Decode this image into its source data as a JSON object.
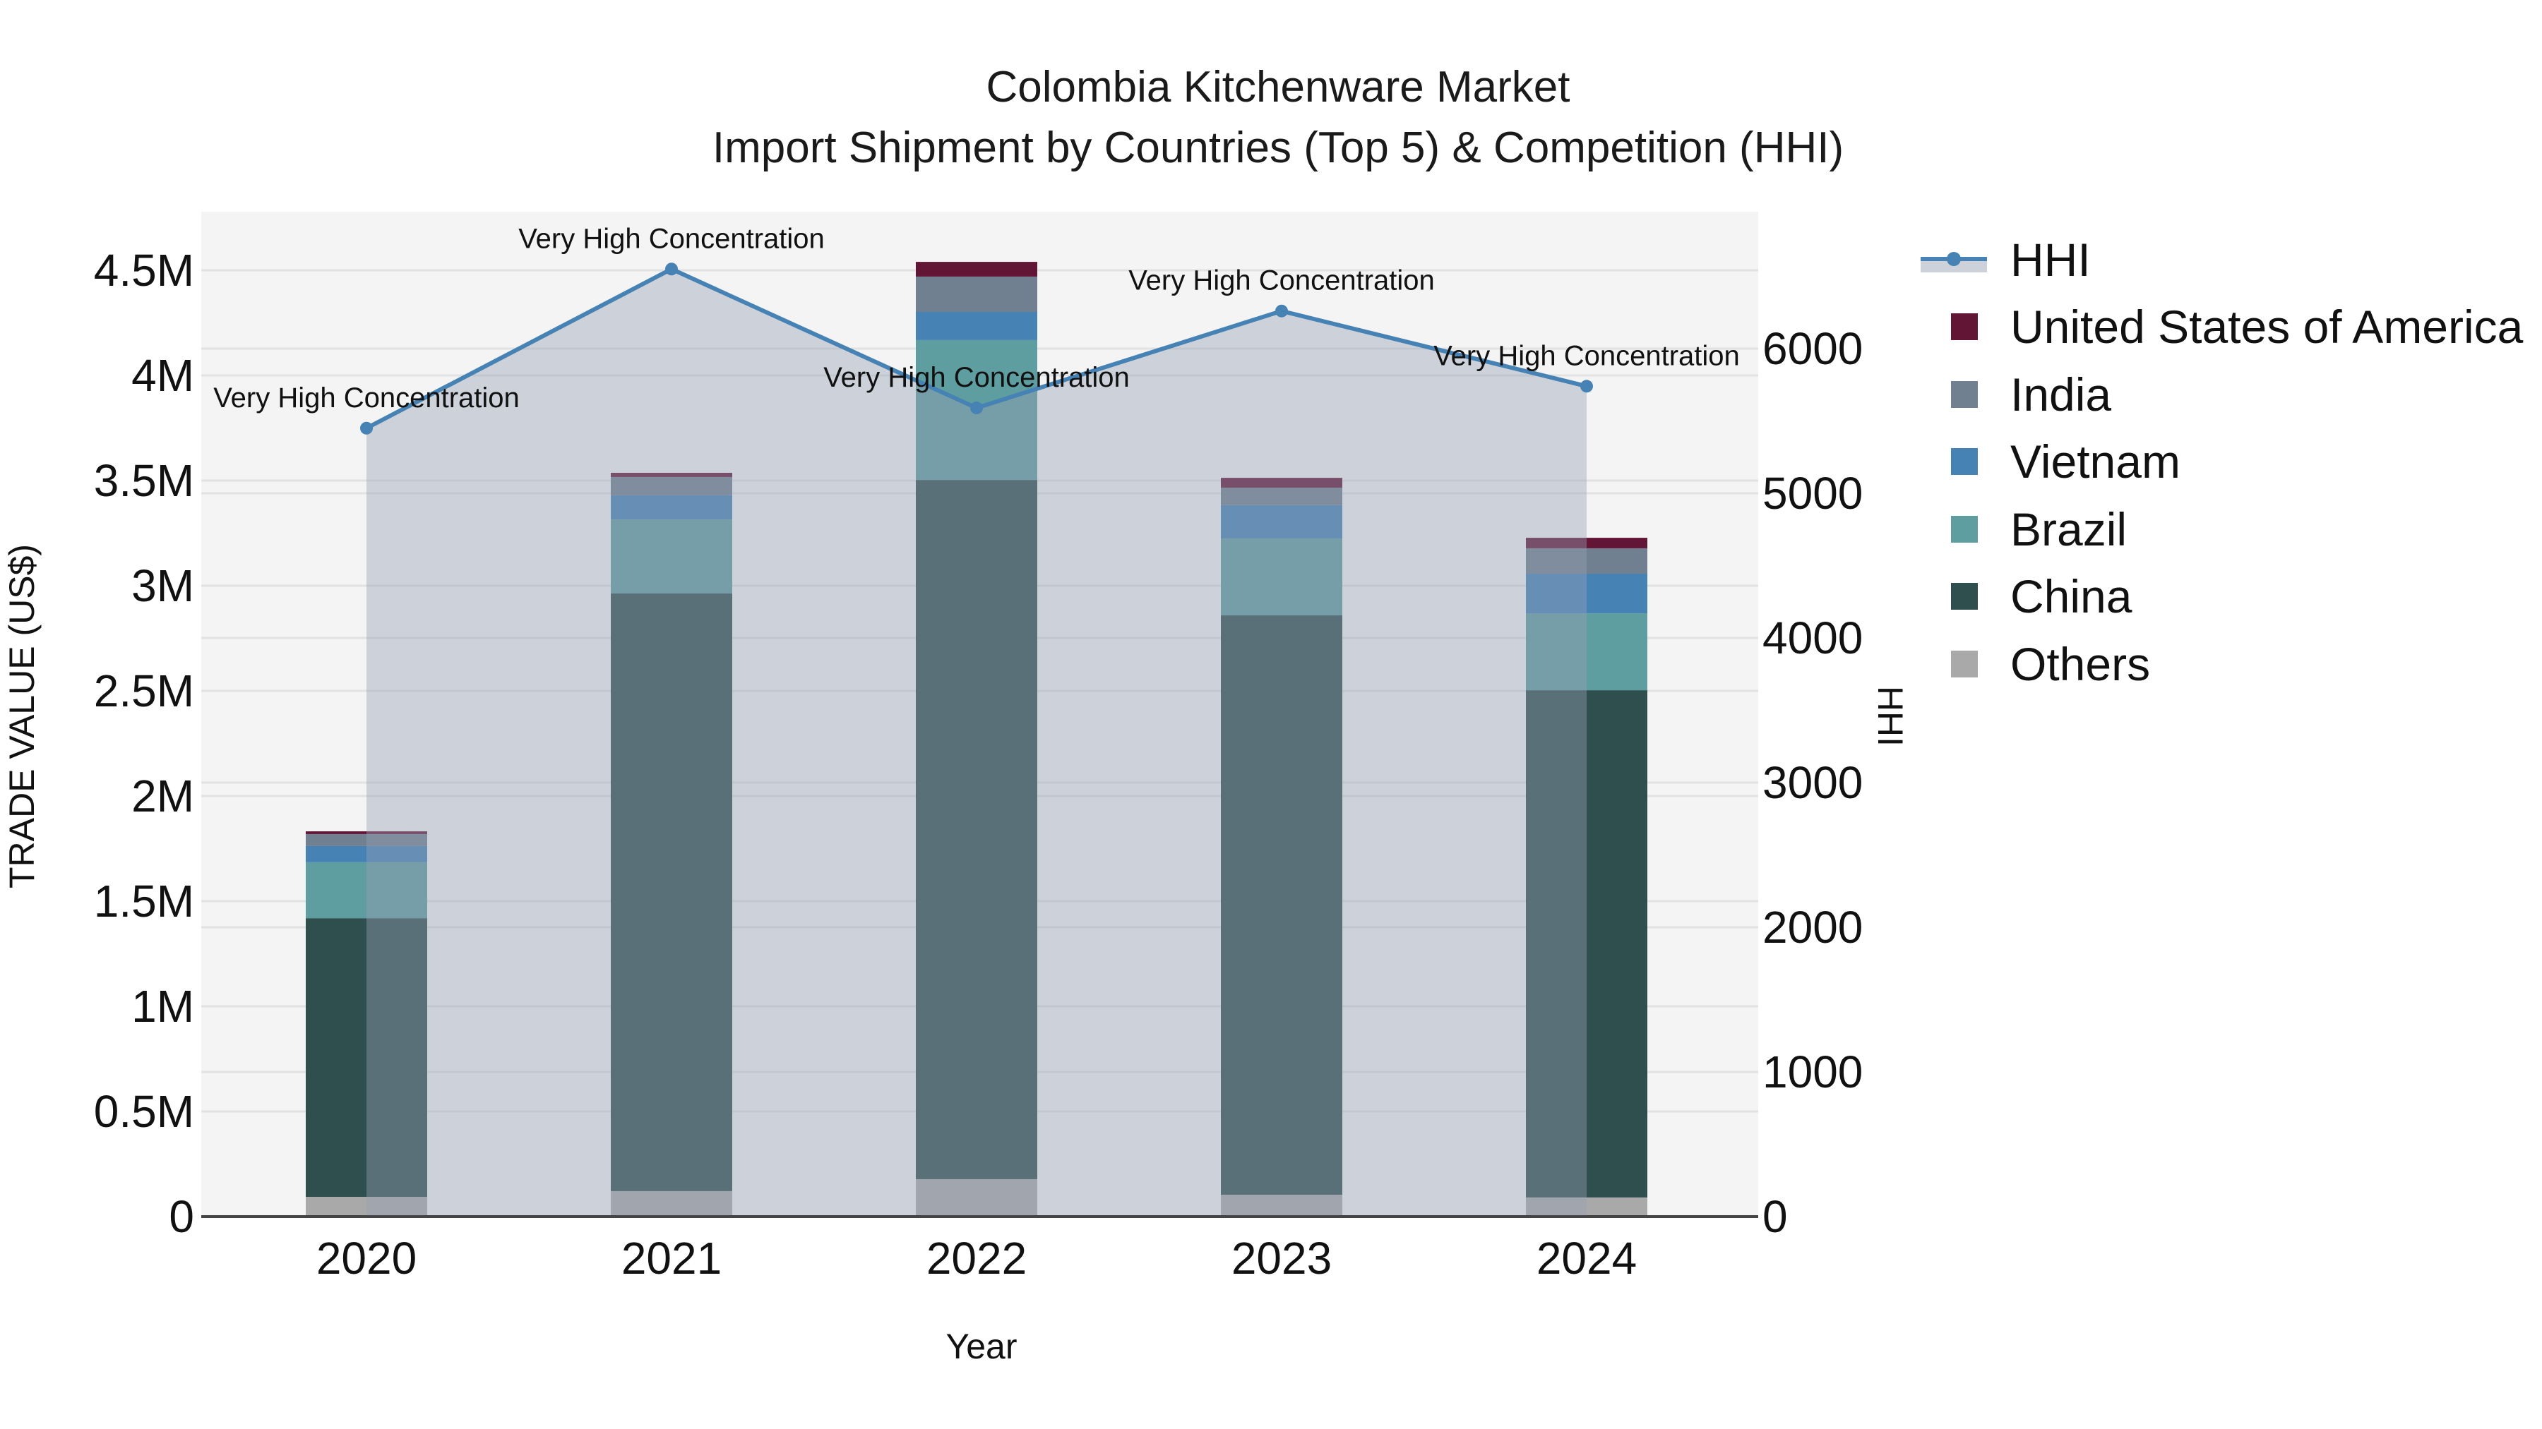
{
  "title": {
    "line1": "Colombia Kitchenware Market",
    "line2": "Import Shipment by Countries (Top 5) & Competition (HHI)"
  },
  "axes": {
    "x_label": "Year",
    "y_left_label": "TRADE VALUE (US$)",
    "y_right_label": "HHI",
    "y_left_ticks": [
      "0",
      "0.5M",
      "1M",
      "1.5M",
      "2M",
      "2.5M",
      "3M",
      "3.5M",
      "4M",
      "4.5M"
    ],
    "y_right_ticks": [
      "0",
      "1000",
      "2000",
      "3000",
      "4000",
      "5000",
      "6000"
    ]
  },
  "legend": [
    {
      "name": "HHI",
      "type": "line",
      "color": "#4682b4"
    },
    {
      "name": "United States of America",
      "type": "bar",
      "color": "#631535"
    },
    {
      "name": "India",
      "type": "bar",
      "color": "#708090"
    },
    {
      "name": "Vietnam",
      "type": "bar",
      "color": "#4682b4"
    },
    {
      "name": "Brazil",
      "type": "bar",
      "color": "#5f9ea0"
    },
    {
      "name": "China",
      "type": "bar",
      "color": "#2f4f4f"
    },
    {
      "name": "Others",
      "type": "bar",
      "color": "#a9a9a9"
    }
  ],
  "chart_data": {
    "type": "bar",
    "stacked": true,
    "title": "Colombia Kitchenware Market — Import Shipment by Countries (Top 5) & Competition (HHI)",
    "xlabel": "Year",
    "ylabel": "TRADE VALUE (US$)",
    "y2label": "HHI",
    "ylim": [
      0,
      4.77
    ],
    "y2lim": [
      0,
      6960
    ],
    "y_unit": "M US$",
    "categories": [
      "2020",
      "2021",
      "2022",
      "2023",
      "2024"
    ],
    "series": [
      {
        "name": "Others",
        "color": "#a9a9a9",
        "values": [
          0.094,
          0.121,
          0.178,
          0.104,
          0.091
        ]
      },
      {
        "name": "China",
        "color": "#2f4f4f",
        "values": [
          1.325,
          2.842,
          3.325,
          2.755,
          2.412
        ]
      },
      {
        "name": "Brazil",
        "color": "#5f9ea0",
        "values": [
          0.266,
          0.352,
          0.665,
          0.366,
          0.366
        ]
      },
      {
        "name": "Vietnam",
        "color": "#4682b4",
        "values": [
          0.077,
          0.115,
          0.134,
          0.158,
          0.188
        ]
      },
      {
        "name": "India",
        "color": "#708090",
        "values": [
          0.057,
          0.087,
          0.168,
          0.083,
          0.121
        ]
      },
      {
        "name": "United States of America",
        "color": "#631535",
        "values": [
          0.013,
          0.02,
          0.07,
          0.047,
          0.05
        ]
      }
    ],
    "line_series": {
      "name": "HHI",
      "axis": "right",
      "color": "#4682b4",
      "fill": "tozeroy",
      "values": [
        5450,
        6550,
        5590,
        6260,
        5740
      ],
      "annotations": [
        "Very High Concentration",
        "Very High Concentration",
        "Very High Concentration",
        "Very High Concentration",
        "Very High Concentration"
      ]
    },
    "grid": true,
    "legend_position": "right"
  }
}
